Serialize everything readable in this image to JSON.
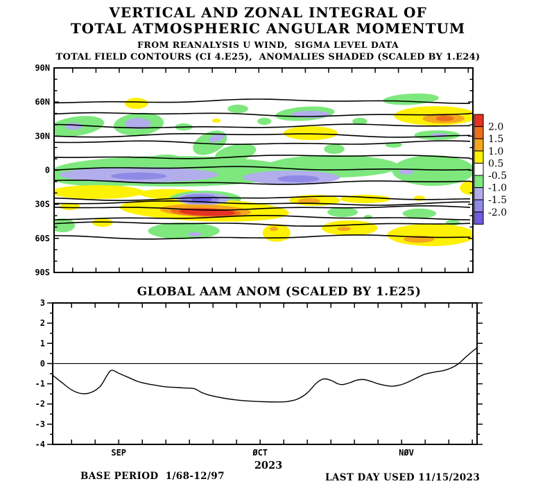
{
  "title": {
    "line1": "VERTICAL AND ZONAL INTEGRAL OF",
    "line2": "TOTAL ATMOSPHERIC ANGULAR MOMENTUM",
    "line3": "FROM REANALYSIS U WIND,  SIGMA LEVEL DATA",
    "line4": "TOTAL FIELD CONTOURS (CI 4.E25),  ANOMALIES SHADED (SCALED BY 1.E24)"
  },
  "footer": {
    "base_period": "BASE PERIOD  1/68-12/97",
    "last_day": "LAST DAY USED 11/15/2023",
    "year": "2023"
  },
  "colors": {
    "background": "#ffffff",
    "line": "#000000",
    "levels": {
      "0.75": "#fdf105",
      "1.25": "#f5a61f",
      "1.75": "#ec6f1d",
      "2.25": "#e53222",
      "-0.75": "#7ee87e",
      "-1.25": "#b2aeeb",
      "-1.75": "#8f8ae6",
      "-2.25": "#6f5ce0"
    }
  },
  "chart_data": [
    {
      "type": "heatmap",
      "subtype": "filled_contour_time_latitude",
      "description": "Vertical and zonal integral of total atmospheric angular momentum; black wavy contours are the total field (CI 4.E25); shaded blobs are anomalies (scaled by 1.E24)",
      "x_axis": {
        "start_date": "2023-08-18",
        "end_date": "2023-11-16",
        "range_days": [
          0,
          90
        ],
        "tick_interval_days": 5,
        "first_tick_day": 4
      },
      "y_axis": {
        "label": "latitude",
        "tick_labels": [
          "90N",
          "60N",
          "30N",
          "0",
          "30S",
          "60S",
          "90S"
        ],
        "minor_tick_deg": 10
      },
      "colorbar": {
        "levels": [
          2.0,
          1.5,
          1.0,
          0.5,
          -0.5,
          -1.0,
          -1.5,
          -2.0
        ],
        "colors": [
          "#e53222",
          "#ec6f1d",
          "#f5a61f",
          "#fdf105",
          "#ffffff",
          "#7ee87e",
          "#b2aeeb",
          "#8f8ae6",
          "#6f5ce0"
        ]
      },
      "contour_interval": "4.E25",
      "total_field_contour_lats": [
        60.7,
        49.1,
        38.7,
        30.8,
        24.1,
        11.9,
        1.5,
        -10.7,
        -24.7,
        -29.0,
        -33.2,
        -41.8,
        -47.3,
        -58.9
      ],
      "blob_format": "[day_from_Aug18, latitude_deg, rx_days, ry_deg, anomaly_level, rotation_deg]",
      "anomaly_blobs": [
        [
          4.8,
          38.7,
          6.0,
          8.5,
          -0.75,
          -8
        ],
        [
          4.2,
          38.7,
          1.9,
          3.1,
          -1.25,
          0
        ],
        [
          18.2,
          40.5,
          5.4,
          9.8,
          -0.75,
          -5
        ],
        [
          18.0,
          41.1,
          2.8,
          4.9,
          -1.25,
          0
        ],
        [
          17.7,
          58.8,
          2.5,
          4.9,
          0.75,
          0
        ],
        [
          39.5,
          54.0,
          2.2,
          3.7,
          -0.75,
          0
        ],
        [
          53.9,
          49.7,
          6.4,
          6.1,
          -0.75,
          -4
        ],
        [
          55.1,
          49.1,
          4.2,
          3.1,
          -1.25,
          0
        ],
        [
          76.7,
          62.5,
          6.0,
          4.9,
          -0.75,
          -3
        ],
        [
          82.0,
          47.9,
          8.9,
          8.5,
          0.75,
          0
        ],
        [
          83.7,
          45.5,
          4.5,
          4.3,
          1.25,
          0
        ],
        [
          84.0,
          45.5,
          1.9,
          2.4,
          1.75,
          0
        ],
        [
          55.1,
          32.6,
          5.8,
          6.1,
          0.75,
          0
        ],
        [
          82.3,
          30.8,
          4.9,
          4.3,
          -0.75,
          0
        ],
        [
          82.8,
          30.8,
          1.9,
          1.8,
          -1.25,
          0
        ],
        [
          34.9,
          43.6,
          0.9,
          1.8,
          0.75,
          0
        ],
        [
          27.9,
          38.1,
          1.9,
          3.1,
          -0.75,
          0
        ],
        [
          45.2,
          43.0,
          1.5,
          3.1,
          -0.75,
          0
        ],
        [
          65.7,
          43.0,
          1.6,
          3.1,
          -0.75,
          0
        ],
        [
          33.5,
          24.1,
          3.9,
          9.2,
          -0.75,
          -25
        ],
        [
          35.0,
          28.4,
          1.8,
          3.1,
          -1.25,
          -20
        ],
        [
          39.0,
          15.0,
          4.5,
          7.3,
          -0.75,
          -12
        ],
        [
          60.2,
          18.6,
          2.2,
          4.3,
          -0.75,
          0
        ],
        [
          73.0,
          22.3,
          1.8,
          2.4,
          -0.75,
          0
        ],
        [
          24.1,
          9.5,
          3.6,
          4.3,
          -0.75,
          0
        ],
        [
          25.6,
          -0.9,
          26.1,
          13.4,
          -0.75,
          0
        ],
        [
          59.9,
          3.4,
          14.2,
          9.8,
          -0.75,
          0
        ],
        [
          81.5,
          -0.3,
          8.9,
          13.4,
          -0.75,
          0
        ],
        [
          10.7,
          -5.8,
          11.9,
          8.5,
          -0.75,
          0
        ],
        [
          18.2,
          -4.0,
          17.1,
          6.7,
          -1.25,
          0
        ],
        [
          51.0,
          -6.4,
          10.4,
          6.1,
          -1.25,
          0
        ],
        [
          75.7,
          -1.5,
          1.6,
          2.4,
          -1.25,
          0
        ],
        [
          18.2,
          -5.2,
          6.0,
          3.1,
          -1.75,
          0
        ],
        [
          52.5,
          -7.6,
          4.5,
          3.1,
          -1.75,
          0
        ],
        [
          9.2,
          -19.2,
          10.1,
          6.1,
          0.75,
          0
        ],
        [
          26.4,
          -21.6,
          8.2,
          4.9,
          0.75,
          2
        ],
        [
          89.4,
          -15.5,
          2.2,
          6.1,
          0.75,
          0
        ],
        [
          32.5,
          -25.3,
          7.7,
          7.3,
          -0.75,
          0
        ],
        [
          32.0,
          -25.3,
          5.7,
          5.5,
          -1.25,
          0
        ],
        [
          31.3,
          -25.3,
          4.2,
          4.3,
          -1.75,
          0
        ],
        [
          31.7,
          -25.9,
          2.2,
          2.4,
          -2.25,
          0
        ],
        [
          32.3,
          -35.1,
          18.2,
          9.8,
          0.75,
          2
        ],
        [
          32.5,
          -35.7,
          9.8,
          5.5,
          1.25,
          2
        ],
        [
          32.6,
          -36.9,
          7.6,
          3.7,
          1.75,
          2
        ],
        [
          32.9,
          -36.9,
          6.0,
          3.1,
          2.25,
          2
        ],
        [
          3.4,
          -32.0,
          2.1,
          3.1,
          0.75,
          0
        ],
        [
          10.4,
          -46.1,
          2.2,
          3.7,
          0.75,
          0
        ],
        [
          1.8,
          -48.5,
          2.7,
          6.1,
          -0.75,
          0
        ],
        [
          27.9,
          -53.4,
          7.7,
          7.3,
          -0.75,
          0
        ],
        [
          30.3,
          -56.4,
          1.5,
          1.8,
          -1.25,
          0
        ],
        [
          56.0,
          -26.5,
          5.5,
          4.9,
          0.75,
          0
        ],
        [
          54.8,
          -27.1,
          2.4,
          2.4,
          1.25,
          0
        ],
        [
          66.9,
          -25.3,
          5.4,
          3.7,
          0.75,
          0
        ],
        [
          78.5,
          -24.7,
          1.2,
          2.4,
          0.75,
          0
        ],
        [
          62.0,
          -36.9,
          3.3,
          4.3,
          -0.75,
          0
        ],
        [
          78.5,
          -38.1,
          3.6,
          4.3,
          -0.75,
          0
        ],
        [
          85.7,
          -46.1,
          1.6,
          2.4,
          -0.75,
          0
        ],
        [
          47.8,
          -55.2,
          3.0,
          7.9,
          0.75,
          0
        ],
        [
          47.2,
          -51.6,
          0.9,
          1.8,
          1.25,
          0
        ],
        [
          63.5,
          -50.9,
          6.0,
          6.7,
          0.75,
          0
        ],
        [
          62.3,
          -51.6,
          1.5,
          1.8,
          1.25,
          0
        ],
        [
          81.1,
          -57.0,
          9.5,
          9.8,
          0.75,
          0
        ],
        [
          78.4,
          -60.7,
          3.3,
          3.1,
          1.25,
          0
        ],
        [
          67.5,
          -41.2,
          0.9,
          1.8,
          -0.75,
          0
        ]
      ]
    },
    {
      "type": "line",
      "title": "GLOBAL AAM ANOM (SCALED BY 1.E25)",
      "x_start_date": "2023-08-18",
      "x_range_days": [
        0,
        90
      ],
      "x_tick_interval_days": 5,
      "x_first_tick_day": 4,
      "ylim": [
        -4,
        3
      ],
      "y_tick_step": 1,
      "y_minor_step": 0.5,
      "y_tick_labels": [
        "3",
        "2",
        "1",
        "0",
        "-1",
        "-2",
        "-3",
        "-4"
      ],
      "zero_line": true,
      "month_labels": [
        {
          "label": "SEP",
          "day": 14
        },
        {
          "label": "ØCT",
          "day": 44
        },
        {
          "label": "NØV",
          "day": 75
        }
      ],
      "points_format": "[day_from_Aug18, anomaly_value]",
      "points": [
        [
          0,
          -0.58
        ],
        [
          2,
          -0.95
        ],
        [
          4,
          -1.3
        ],
        [
          6,
          -1.48
        ],
        [
          8,
          -1.44
        ],
        [
          10,
          -1.15
        ],
        [
          11.5,
          -0.6
        ],
        [
          12.5,
          -0.33
        ],
        [
          14,
          -0.48
        ],
        [
          16,
          -0.68
        ],
        [
          18,
          -0.88
        ],
        [
          20,
          -1.0
        ],
        [
          22,
          -1.08
        ],
        [
          24,
          -1.15
        ],
        [
          26,
          -1.18
        ],
        [
          28,
          -1.21
        ],
        [
          30,
          -1.24
        ],
        [
          31.5,
          -1.42
        ],
        [
          33,
          -1.55
        ],
        [
          36,
          -1.7
        ],
        [
          39,
          -1.8
        ],
        [
          42,
          -1.86
        ],
        [
          45,
          -1.89
        ],
        [
          48,
          -1.9
        ],
        [
          50,
          -1.87
        ],
        [
          52,
          -1.75
        ],
        [
          54,
          -1.45
        ],
        [
          56,
          -0.95
        ],
        [
          57.5,
          -0.76
        ],
        [
          59,
          -0.83
        ],
        [
          60.5,
          -1.0
        ],
        [
          61.5,
          -1.04
        ],
        [
          63,
          -0.95
        ],
        [
          64.5,
          -0.82
        ],
        [
          66,
          -0.79
        ],
        [
          67.5,
          -0.88
        ],
        [
          69,
          -1.0
        ],
        [
          70.5,
          -1.08
        ],
        [
          72,
          -1.12
        ],
        [
          73.5,
          -1.07
        ],
        [
          75,
          -0.95
        ],
        [
          77,
          -0.73
        ],
        [
          79,
          -0.52
        ],
        [
          81,
          -0.42
        ],
        [
          83,
          -0.34
        ],
        [
          84.5,
          -0.22
        ],
        [
          86,
          -0.02
        ],
        [
          87.5,
          0.3
        ],
        [
          89,
          0.6
        ],
        [
          90,
          0.78
        ]
      ]
    }
  ]
}
